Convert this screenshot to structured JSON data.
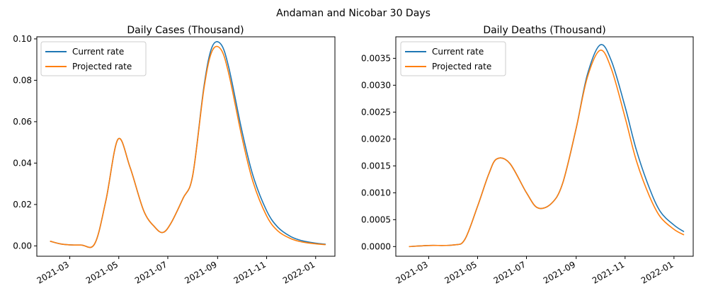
{
  "suptitle": "Andaman and Nicobar 30 Days",
  "chart_data": [
    {
      "type": "line",
      "title": "Daily Cases (Thousand)",
      "xlabel": "",
      "ylabel": "",
      "x_ticks": [
        "2021-03",
        "2021-05",
        "2021-07",
        "2021-09",
        "2021-11",
        "2022-01"
      ],
      "y_ticks": [
        "0.00",
        "0.02",
        "0.04",
        "0.06",
        "0.08",
        "0.10"
      ],
      "ylim": [
        -0.005,
        0.101
      ],
      "xlim": [
        "2021-01-19",
        "2022-01-25"
      ],
      "grid": false,
      "legend": "top-left",
      "series": [
        {
          "name": "Current rate",
          "color": "#1f77b4",
          "x": [
            "2021-02-05",
            "2021-02-20",
            "2021-03-15",
            "2021-04-01",
            "2021-04-15",
            "2021-04-30",
            "2021-05-15",
            "2021-06-01",
            "2021-06-15",
            "2021-06-25",
            "2021-07-05",
            "2021-07-20",
            "2021-08-01",
            "2021-08-15",
            "2021-08-25",
            "2021-09-05",
            "2021-09-15",
            "2021-10-01",
            "2021-10-15",
            "2021-11-01",
            "2021-11-15",
            "2021-12-01",
            "2021-12-15",
            "2022-01-01",
            "2022-01-13"
          ],
          "values": [
            0.0022,
            0.0008,
            0.0004,
            0.001,
            0.022,
            0.0515,
            0.038,
            0.017,
            0.009,
            0.0065,
            0.011,
            0.023,
            0.034,
            0.077,
            0.096,
            0.0975,
            0.086,
            0.056,
            0.034,
            0.017,
            0.009,
            0.0045,
            0.0025,
            0.0013,
            0.0008
          ]
        },
        {
          "name": "Projected rate",
          "color": "#ff7f0e",
          "x": [
            "2021-02-05",
            "2021-02-20",
            "2021-03-15",
            "2021-04-01",
            "2021-04-15",
            "2021-04-30",
            "2021-05-15",
            "2021-06-01",
            "2021-06-15",
            "2021-06-25",
            "2021-07-05",
            "2021-07-20",
            "2021-08-01",
            "2021-08-15",
            "2021-08-25",
            "2021-09-05",
            "2021-09-15",
            "2021-10-01",
            "2021-10-15",
            "2021-11-01",
            "2021-11-15",
            "2021-12-01",
            "2021-12-15",
            "2022-01-01",
            "2022-01-13"
          ],
          "values": [
            0.0022,
            0.0008,
            0.0004,
            0.001,
            0.022,
            0.0515,
            0.038,
            0.017,
            0.009,
            0.0065,
            0.011,
            0.023,
            0.034,
            0.076,
            0.094,
            0.095,
            0.083,
            0.053,
            0.031,
            0.0145,
            0.0072,
            0.0035,
            0.0019,
            0.001,
            0.0006
          ]
        }
      ]
    },
    {
      "type": "line",
      "title": "Daily Deaths (Thousand)",
      "xlabel": "",
      "ylabel": "",
      "x_ticks": [
        "2021-03",
        "2021-05",
        "2021-07",
        "2021-09",
        "2021-11",
        "2022-01"
      ],
      "y_ticks": [
        "0.0000",
        "0.0005",
        "0.0010",
        "0.0015",
        "0.0020",
        "0.0025",
        "0.0030",
        "0.0035"
      ],
      "ylim": [
        -0.00018,
        0.0039
      ],
      "xlim": [
        "2021-01-19",
        "2022-01-25"
      ],
      "grid": false,
      "legend": "top-left",
      "series": [
        {
          "name": "Current rate",
          "color": "#1f77b4",
          "x": [
            "2021-02-05",
            "2021-03-01",
            "2021-04-01",
            "2021-04-15",
            "2021-05-01",
            "2021-05-15",
            "2021-05-25",
            "2021-06-10",
            "2021-07-01",
            "2021-07-15",
            "2021-08-01",
            "2021-08-15",
            "2021-09-01",
            "2021-09-15",
            "2021-10-01",
            "2021-10-15",
            "2021-11-01",
            "2021-11-15",
            "2021-12-01",
            "2021-12-15",
            "2022-01-01",
            "2022-01-13"
          ],
          "values": [
            0.0,
            2e-05,
            3e-05,
            0.00013,
            0.00075,
            0.00135,
            0.00163,
            0.00155,
            0.001,
            0.00072,
            0.0008,
            0.00117,
            0.0022,
            0.0032,
            0.00375,
            0.00345,
            0.0026,
            0.0018,
            0.0011,
            0.00065,
            0.0004,
            0.00028
          ]
        },
        {
          "name": "Projected rate",
          "color": "#ff7f0e",
          "x": [
            "2021-02-05",
            "2021-03-01",
            "2021-04-01",
            "2021-04-15",
            "2021-05-01",
            "2021-05-15",
            "2021-05-25",
            "2021-06-10",
            "2021-07-01",
            "2021-07-15",
            "2021-08-01",
            "2021-08-15",
            "2021-09-01",
            "2021-09-15",
            "2021-10-01",
            "2021-10-15",
            "2021-11-01",
            "2021-11-15",
            "2021-12-01",
            "2021-12-15",
            "2022-01-01",
            "2022-01-13"
          ],
          "values": [
            0.0,
            2e-05,
            3e-05,
            0.00013,
            0.00075,
            0.00135,
            0.00163,
            0.00155,
            0.001,
            0.00072,
            0.0008,
            0.00117,
            0.0022,
            0.00315,
            0.00365,
            0.0033,
            0.0024,
            0.0016,
            0.00095,
            0.00055,
            0.00032,
            0.00022
          ]
        }
      ]
    }
  ]
}
